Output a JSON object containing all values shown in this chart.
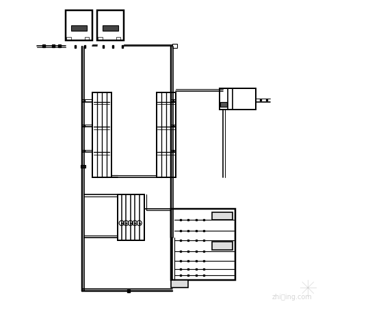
{
  "bg_color": "#ffffff",
  "line_color": "#000000",
  "line_width": 1.2,
  "fig_width": 5.6,
  "fig_height": 4.63,
  "dpi": 100
}
